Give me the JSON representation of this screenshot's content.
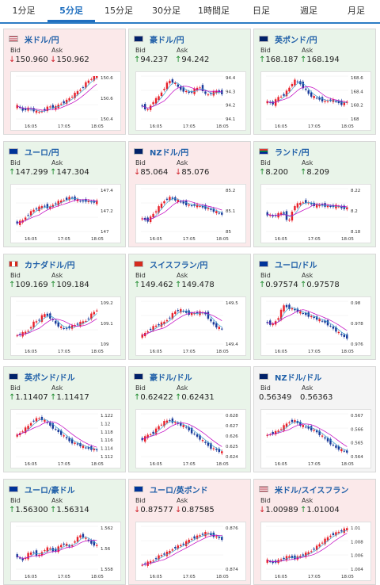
{
  "tabs": [
    "1分足",
    "5分足",
    "15分足",
    "30分足",
    "1時間足",
    "日足",
    "週足",
    "月足"
  ],
  "active_tab": 1,
  "labels": {
    "bid": "Bid",
    "ask": "Ask"
  },
  "colors": {
    "up": "#e9f4e9",
    "down": "#fbe9ea",
    "neutral": "#f4f4f4",
    "candle_up": "#e8202a",
    "candle_down": "#1a3a9a",
    "ma": "#c000c0",
    "ma2": "#3aa0d0"
  },
  "cards": [
    {
      "pair": "米ドル/円",
      "flag": "us",
      "state": "down",
      "bid": "150.960",
      "ask": "150.962",
      "bid_dir": "down",
      "ask_dir": "down",
      "x_ticks": [
        "16:05",
        "17:05",
        "18:05"
      ],
      "y_ticks": [
        "150.6",
        "150.6",
        "150.4"
      ],
      "trend": [
        0.3,
        0.2,
        0.25,
        0.2,
        0.15,
        0.2,
        0.3,
        0.25,
        0.35,
        0.4,
        0.5,
        0.6,
        0.7,
        0.85,
        0.95,
        1.0
      ]
    },
    {
      "pair": "豪ドル/円",
      "flag": "au",
      "state": "up",
      "bid": "94.237",
      "ask": "94.242",
      "bid_dir": "up",
      "ask_dir": "up",
      "x_ticks": [
        "16:05",
        "17:05",
        "18:05"
      ],
      "y_ticks": [
        "94.4",
        "94.3",
        "94.2",
        "94.1"
      ],
      "trend": [
        0.3,
        0.2,
        0.4,
        0.5,
        0.7,
        0.9,
        0.85,
        0.7,
        0.65,
        0.6,
        0.7,
        0.75,
        0.55,
        0.6,
        0.65,
        0.6
      ]
    },
    {
      "pair": "英ポンド/円",
      "flag": "gb",
      "state": "up",
      "bid": "168.187",
      "ask": "168.194",
      "bid_dir": "up",
      "ask_dir": "up",
      "x_ticks": [
        "16:05",
        "17:05",
        "18:05"
      ],
      "y_ticks": [
        "168.6",
        "168.4",
        "168.2",
        "168"
      ],
      "trend": [
        0.4,
        0.35,
        0.5,
        0.55,
        0.7,
        0.9,
        0.85,
        0.7,
        0.55,
        0.5,
        0.45,
        0.4,
        0.45,
        0.4,
        0.35,
        0.4
      ]
    },
    {
      "pair": "ユーロ/円",
      "flag": "eu",
      "state": "up",
      "bid": "147.299",
      "ask": "147.304",
      "bid_dir": "up",
      "ask_dir": "up",
      "x_ticks": [
        "16:05",
        "17:05",
        "18:05"
      ],
      "y_ticks": [
        "147.4",
        "147.2",
        "147"
      ],
      "trend": [
        0.2,
        0.25,
        0.4,
        0.5,
        0.55,
        0.6,
        0.55,
        0.65,
        0.7,
        0.75,
        0.8,
        0.75,
        0.7,
        0.72,
        0.68,
        0.7
      ]
    },
    {
      "pair": "NZドル/円",
      "flag": "nz",
      "state": "down",
      "bid": "85.064",
      "ask": "85.076",
      "bid_dir": "down",
      "ask_dir": "down",
      "x_ticks": [
        "16:05",
        "17:05",
        "18:05"
      ],
      "y_ticks": [
        "85.2",
        "85.1",
        "85"
      ],
      "trend": [
        0.3,
        0.25,
        0.4,
        0.55,
        0.7,
        0.8,
        0.75,
        0.7,
        0.65,
        0.6,
        0.62,
        0.58,
        0.55,
        0.5,
        0.45,
        0.4
      ]
    },
    {
      "pair": "ランド/円",
      "flag": "za",
      "state": "up",
      "bid": "8.200",
      "ask": "8.209",
      "bid_dir": "up",
      "ask_dir": "up",
      "x_ticks": [
        "16:05",
        "17:05",
        "18:05"
      ],
      "y_ticks": [
        "8.22",
        "8.2",
        "8.18"
      ],
      "trend": [
        0.4,
        0.35,
        0.4,
        0.45,
        0.2,
        0.6,
        0.65,
        0.7,
        0.65,
        0.6,
        0.62,
        0.6,
        0.58,
        0.6,
        0.55,
        0.55
      ]
    },
    {
      "pair": "カナダドル/円",
      "flag": "ca",
      "state": "up",
      "bid": "109.169",
      "ask": "109.184",
      "bid_dir": "up",
      "ask_dir": "up",
      "x_ticks": [
        "16:05",
        "17:05",
        "18:05"
      ],
      "y_ticks": [
        "109.2",
        "109.1",
        "109"
      ],
      "trend": [
        0.2,
        0.25,
        0.3,
        0.5,
        0.55,
        0.7,
        0.65,
        0.5,
        0.4,
        0.35,
        0.4,
        0.45,
        0.5,
        0.55,
        0.7,
        0.8
      ]
    },
    {
      "pair": "スイスフラン/円",
      "flag": "ch",
      "state": "up",
      "bid": "149.462",
      "ask": "149.478",
      "bid_dir": "up",
      "ask_dir": "up",
      "x_ticks": [
        "16:05",
        "17:05",
        "18:05"
      ],
      "y_ticks": [
        "149.5",
        "149.4"
      ],
      "trend": [
        0.2,
        0.3,
        0.4,
        0.45,
        0.5,
        0.6,
        0.75,
        0.8,
        0.75,
        0.7,
        0.72,
        0.74,
        0.7,
        0.5,
        0.4,
        0.35
      ]
    },
    {
      "pair": "ユーロ/ドル",
      "flag": "eu",
      "state": "up",
      "bid": "0.97574",
      "ask": "0.97578",
      "bid_dir": "up",
      "ask_dir": "up",
      "x_ticks": [
        "16:05",
        "17:05",
        "18:05"
      ],
      "y_ticks": [
        "0.98",
        "0.978",
        "0.976"
      ],
      "trend": [
        0.5,
        0.45,
        0.6,
        0.9,
        0.85,
        0.8,
        0.75,
        0.7,
        0.65,
        0.6,
        0.55,
        0.5,
        0.4,
        0.3,
        0.2,
        0.15
      ]
    },
    {
      "pair": "英ポンド/ドル",
      "flag": "gb",
      "state": "up",
      "bid": "1.11407",
      "ask": "1.11417",
      "bid_dir": "up",
      "ask_dir": "up",
      "x_ticks": [
        "16:05",
        "17:05",
        "18:05"
      ],
      "y_ticks": [
        "1.122",
        "1.12",
        "1.118",
        "1.116",
        "1.114",
        "1.112"
      ],
      "trend": [
        0.5,
        0.6,
        0.7,
        0.85,
        0.9,
        0.85,
        0.75,
        0.65,
        0.55,
        0.45,
        0.35,
        0.3,
        0.25,
        0.2,
        0.18,
        0.15
      ]
    },
    {
      "pair": "豪ドル/ドル",
      "flag": "au",
      "state": "up",
      "bid": "0.62422",
      "ask": "0.62431",
      "bid_dir": "up",
      "ask_dir": "up",
      "x_ticks": [
        "16:05",
        "17:05",
        "18:05"
      ],
      "y_ticks": [
        "0.628",
        "0.627",
        "0.626",
        "0.625",
        "0.624"
      ],
      "trend": [
        0.4,
        0.5,
        0.55,
        0.7,
        0.8,
        0.85,
        0.8,
        0.75,
        0.7,
        0.6,
        0.5,
        0.4,
        0.3,
        0.2,
        0.15,
        0.1
      ]
    },
    {
      "pair": "NZドル/ドル",
      "flag": "nz",
      "state": "neutral",
      "bid": "0.56349",
      "ask": "0.56363",
      "bid_dir": "none",
      "ask_dir": "none",
      "x_ticks": [
        "16:05",
        "17:05",
        "18:05"
      ],
      "y_ticks": [
        "0.567",
        "0.566",
        "0.565",
        "0.564"
      ],
      "trend": [
        0.5,
        0.55,
        0.6,
        0.7,
        0.8,
        0.85,
        0.75,
        0.7,
        0.65,
        0.6,
        0.5,
        0.4,
        0.3,
        0.2,
        0.15,
        0.1
      ]
    },
    {
      "pair": "ユーロ/豪ドル",
      "flag": "eu",
      "state": "up",
      "bid": "1.56300",
      "ask": "1.56314",
      "bid_dir": "up",
      "ask_dir": "up",
      "x_ticks": [
        "16:05",
        "17:05",
        "18:05"
      ],
      "y_ticks": [
        "1.562",
        "1.56",
        "1.558"
      ],
      "trend": [
        0.3,
        0.2,
        0.35,
        0.4,
        0.3,
        0.45,
        0.5,
        0.4,
        0.55,
        0.6,
        0.5,
        0.7,
        0.8,
        0.7,
        0.6,
        0.55
      ]
    },
    {
      "pair": "ユーロ/英ポンド",
      "flag": "eu",
      "state": "down",
      "bid": "0.87577",
      "ask": "0.87585",
      "bid_dir": "down",
      "ask_dir": "down",
      "x_ticks": [
        "16:05",
        "17:05",
        "18:05"
      ],
      "y_ticks": [
        "0.876",
        "0.874"
      ],
      "trend": [
        0.1,
        0.15,
        0.2,
        0.3,
        0.35,
        0.4,
        0.5,
        0.55,
        0.6,
        0.7,
        0.75,
        0.8,
        0.85,
        0.8,
        0.75,
        0.7
      ]
    },
    {
      "pair": "米ドル/スイスフラン",
      "flag": "us",
      "state": "down",
      "bid": "1.00989",
      "ask": "1.01004",
      "bid_dir": "down",
      "ask_dir": "up",
      "x_ticks": [
        "16:05",
        "17:05",
        "18:05"
      ],
      "y_ticks": [
        "1.01",
        "1.008",
        "1.006",
        "1.004"
      ],
      "trend": [
        0.2,
        0.15,
        0.2,
        0.25,
        0.3,
        0.25,
        0.3,
        0.35,
        0.4,
        0.5,
        0.6,
        0.7,
        0.8,
        0.85,
        0.9,
        0.95
      ]
    }
  ]
}
